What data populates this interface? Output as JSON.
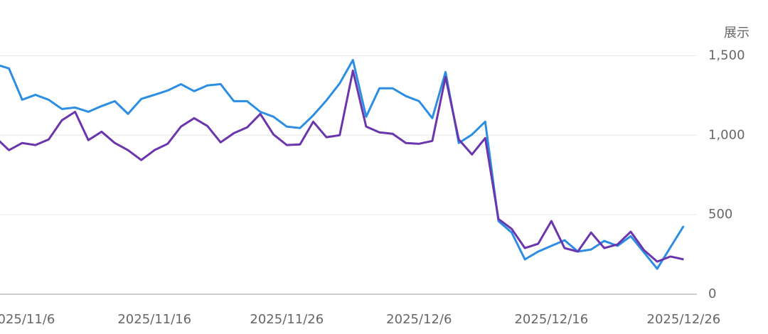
{
  "chart_data": {
    "type": "line",
    "y_label": "展示",
    "x": [
      "2025/11/4",
      "2025/11/5",
      "2025/11/6",
      "2025/11/7",
      "2025/11/8",
      "2025/11/9",
      "2025/11/10",
      "2025/11/11",
      "2025/11/12",
      "2025/11/13",
      "2025/11/14",
      "2025/11/15",
      "2025/11/16",
      "2025/11/17",
      "2025/11/18",
      "2025/11/19",
      "2025/11/20",
      "2025/11/21",
      "2025/11/22",
      "2025/11/23",
      "2025/11/24",
      "2025/11/25",
      "2025/11/26",
      "2025/11/27",
      "2025/11/28",
      "2025/11/29",
      "2025/11/30",
      "2025/12/1",
      "2025/12/2",
      "2025/12/3",
      "2025/12/4",
      "2025/12/5",
      "2025/12/6",
      "2025/12/7",
      "2025/12/8",
      "2025/12/9",
      "2025/12/10",
      "2025/12/11",
      "2025/12/12",
      "2025/12/13",
      "2025/12/14",
      "2025/12/15",
      "2025/12/16",
      "2025/12/17",
      "2025/12/18",
      "2025/12/19",
      "2025/12/20",
      "2025/12/21",
      "2025/12/22",
      "2025/12/23",
      "2025/12/24",
      "2025/12/25",
      "2025/12/26"
    ],
    "series": [
      {
        "color": "#2b8de3",
        "values": [
          1445,
          1420,
          1223,
          1254,
          1223,
          1165,
          1174,
          1147,
          1183,
          1214,
          1134,
          1228,
          1254,
          1281,
          1321,
          1277,
          1313,
          1321,
          1214,
          1214,
          1147,
          1116,
          1054,
          1045,
          1125,
          1219,
          1326,
          1473,
          1116,
          1295,
          1295,
          1246,
          1214,
          1107,
          1397,
          951,
          1004,
          1085,
          460,
          388,
          219,
          268,
          304,
          339,
          268,
          281,
          335,
          304,
          365,
          263,
          160,
          295,
          429
        ]
      },
      {
        "color": "#6a35ad",
        "values": [
          985,
          906,
          951,
          938,
          973,
          1094,
          1147,
          969,
          1022,
          951,
          906,
          844,
          906,
          946,
          1054,
          1107,
          1058,
          955,
          1013,
          1049,
          1134,
          1004,
          938,
          942,
          1085,
          987,
          1000,
          1406,
          1054,
          1018,
          1009,
          951,
          946,
          964,
          1366,
          973,
          879,
          982,
          473,
          411,
          290,
          317,
          460,
          290,
          268,
          388,
          290,
          313,
          393,
          277,
          205,
          237,
          219
        ]
      }
    ],
    "xlim": [
      "2025/11/4",
      "2025/12/27"
    ],
    "xticks": [
      "2025/11/6",
      "2025/11/16",
      "2025/11/26",
      "2025/12/6",
      "2025/12/16",
      "2025/12/26"
    ],
    "ylim": [
      0,
      1600
    ],
    "yticks": [
      0,
      500,
      {
        "value": 1000,
        "label": "1,000"
      },
      {
        "value": 1500,
        "label": "1,500"
      }
    ],
    "grid": true
  }
}
